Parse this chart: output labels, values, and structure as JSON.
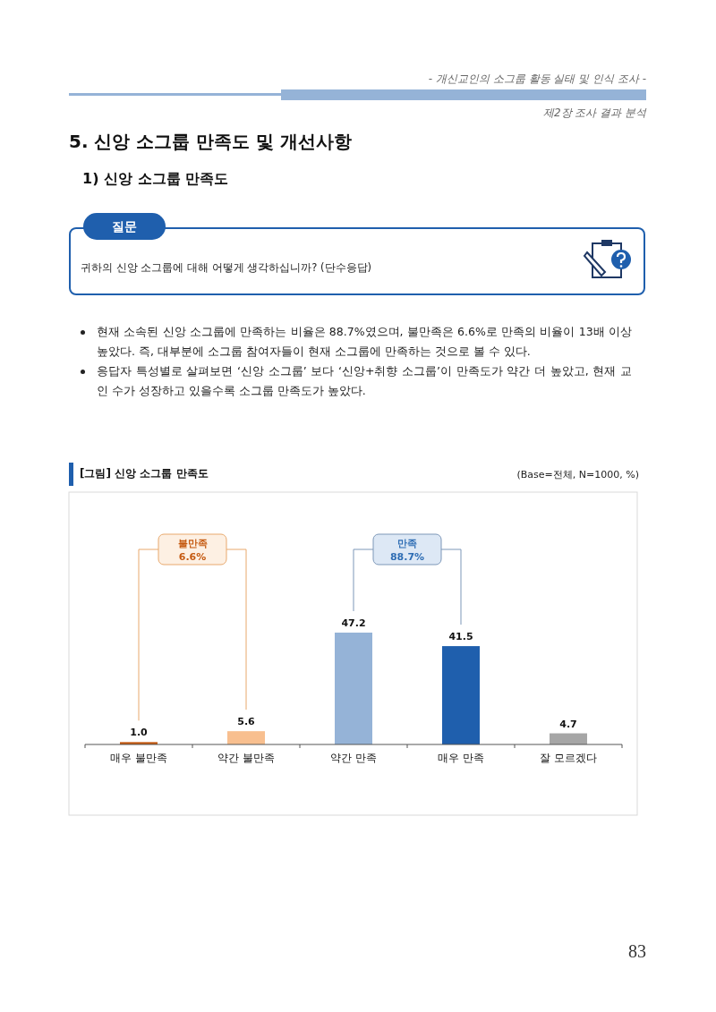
{
  "chart_data": {
    "type": "bar",
    "title": "[그림] 신앙 소그룹 만족도",
    "subtitle": "(Base=전체, N=1000, %)",
    "categories": [
      "매우 불만족",
      "약간 불만족",
      "약간 만족",
      "매우 만족",
      "잘 모르겠다"
    ],
    "values": [
      1.0,
      5.6,
      47.2,
      41.5,
      4.7
    ],
    "colors": [
      "#c55a11",
      "#f8bf8f",
      "#95b3d7",
      "#1f5fad",
      "#a6a6a6"
    ],
    "value_labels": [
      "1.0",
      "5.6",
      "47.2",
      "41.5",
      "4.7"
    ],
    "relative": false,
    "grid": false,
    "legend": false,
    "annotations": [
      "- 개신교인의 소그룹 활동 실태 및 인식 조사 -",
      "제2장 조사 결과 분석",
      "5. 신앙 소그룹 만족도 및 개선사항",
      "1) 신앙 소그룹 만족도",
      "질문",
      "귀하의 신앙 소그룹에 대해 어떻게 생각하십니까? (단수응답)",
      "현재 소속된 신앙 소그룹에 만족하는 비율은 88.7%였으며, 불만족은 6.6%로 만족의 비율이 13배 이상 높았다. 즉, 대부분에 소그룹 참여자들이 현재 소그룹에 만족하는 것으로 볼 수 있다.",
      "응답자 특성별로 살펴보면 ‘신앙 소그룹’ 보다 ‘신앙+취향 소그룹’이 만족도가 약간 더 높았고, 현재 교인 수가 성장하고 있을수록 소그룹 만족도가 높았다.",
      "불만족 6.6%",
      "만족 88.7%",
      "83"
    ]
  }
}
